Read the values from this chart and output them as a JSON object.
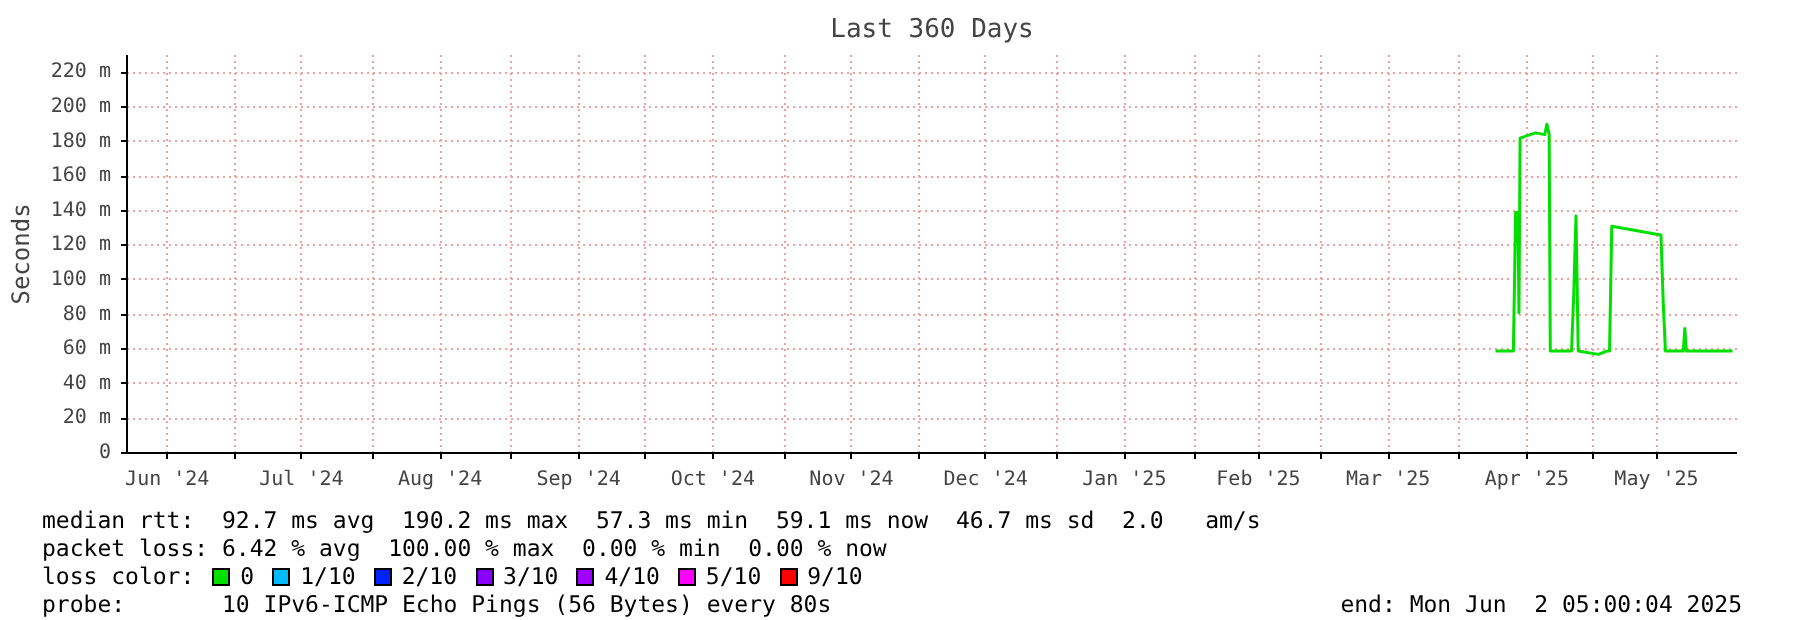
{
  "chart_data": {
    "type": "line",
    "title": "Last 360 Days",
    "ylabel": "Seconds",
    "xlim": [
      "2024-06-07",
      "2025-06-02"
    ],
    "xticks": [
      {
        "value": "2024-06-16",
        "label": "Jun '24"
      },
      {
        "value": "2024-07-01",
        "label": null
      },
      {
        "value": "2024-07-16",
        "label": "Jul '24"
      },
      {
        "value": "2024-08-01",
        "label": null
      },
      {
        "value": "2024-08-16",
        "label": "Aug '24"
      },
      {
        "value": "2024-09-01",
        "label": null
      },
      {
        "value": "2024-09-16",
        "label": "Sep '24"
      },
      {
        "value": "2024-10-01",
        "label": null
      },
      {
        "value": "2024-10-16",
        "label": "Oct '24"
      },
      {
        "value": "2024-11-01",
        "label": null
      },
      {
        "value": "2024-11-16",
        "label": "Nov '24"
      },
      {
        "value": "2024-12-01",
        "label": null
      },
      {
        "value": "2024-12-16",
        "label": "Dec '24"
      },
      {
        "value": "2025-01-01",
        "label": null
      },
      {
        "value": "2025-01-16",
        "label": "Jan '25"
      },
      {
        "value": "2025-02-01",
        "label": null
      },
      {
        "value": "2025-02-15",
        "label": "Feb '25"
      },
      {
        "value": "2025-03-01",
        "label": null
      },
      {
        "value": "2025-03-16",
        "label": "Mar '25"
      },
      {
        "value": "2025-04-01",
        "label": null
      },
      {
        "value": "2025-04-16",
        "label": "Apr '25"
      },
      {
        "value": "2025-05-01",
        "label": null
      },
      {
        "value": "2025-05-15",
        "label": "May '25"
      }
    ],
    "ylim": [
      0,
      230
    ],
    "yticks": [
      0,
      {
        "value": 20,
        "label": "20 m"
      },
      {
        "value": 40,
        "label": "40 m"
      },
      {
        "value": 60,
        "label": "60 m"
      },
      {
        "value": 80,
        "label": "80 m"
      },
      {
        "value": 100,
        "label": "100 m"
      },
      {
        "value": 120,
        "label": "120 m"
      },
      {
        "value": 140,
        "label": "140 m"
      },
      {
        "value": 160,
        "label": "160 m"
      },
      {
        "value": 180,
        "label": "180 m"
      },
      {
        "value": 200,
        "label": "200 m"
      },
      {
        "value": 220,
        "label": "220 m"
      }
    ],
    "grid": true,
    "legend": "bottom",
    "legend_title": "loss color:",
    "series": [
      {
        "name": "0",
        "color": "#00e000",
        "x": [
          "2025-04-09",
          "2025-04-13",
          "2025-04-13T12:00",
          "2025-04-14",
          "2025-04-14T06:00",
          "2025-04-14T12:00",
          "2025-04-18",
          "2025-04-20",
          "2025-04-20T12:00",
          "2025-04-21",
          "2025-04-21T06:00",
          "2025-04-26",
          "2025-04-26T12:00",
          "2025-04-27",
          "2025-04-27T12:00",
          "2025-05-02",
          "2025-05-04",
          "2025-05-04T12:00",
          "2025-05-05",
          "2025-05-16",
          "2025-05-16T12:00",
          "2025-05-17",
          "2025-05-21",
          "2025-05-21T08:00",
          "2025-05-21T16:00",
          "2025-06-01"
        ],
        "values": [
          59,
          59,
          139,
          139,
          81,
          182,
          185,
          184,
          190,
          184,
          59,
          59,
          92,
          137,
          59,
          57,
          59,
          59,
          131,
          126,
          87,
          59,
          59,
          72,
          59,
          59
        ]
      },
      {
        "name": "1/10",
        "color": "#00bbff"
      },
      {
        "name": "2/10",
        "color": "#0022ff"
      },
      {
        "name": "3/10",
        "color": "#8a00ff"
      },
      {
        "name": "4/10",
        "color": "#a000ff"
      },
      {
        "name": "5/10",
        "color": "#ff00ff"
      },
      {
        "name": "9/10",
        "color": "#ff0000"
      }
    ],
    "annotations": [
      "median rtt:  92.7 ms avg  190.2 ms max  57.3 ms min  59.1 ms now  46.7 ms sd  2.0   am/s",
      "packet loss: 6.42 % avg  100.00 % max  0.00 % min  0.00 % now",
      "probe:       10 IPv6-ICMP Echo Pings (56 Bytes) every 80s",
      "end: Mon Jun  2 05:00:04 2025"
    ]
  }
}
